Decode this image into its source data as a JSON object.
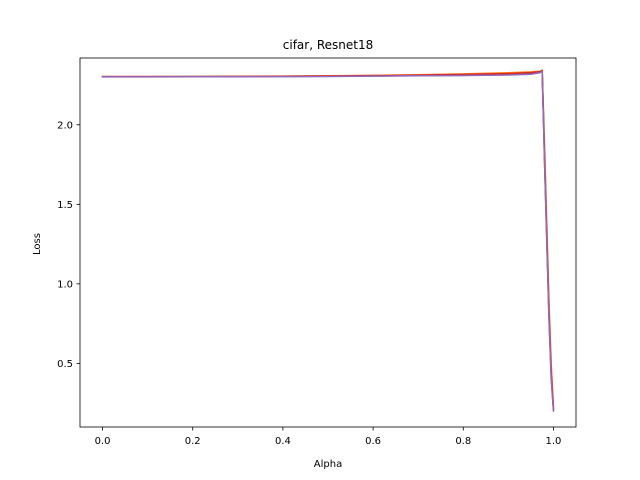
{
  "chart_data": {
    "type": "line",
    "title": "cifar, Resnet18",
    "xlabel": "Alpha",
    "ylabel": "Loss",
    "xlim": [
      -0.05,
      1.05
    ],
    "ylim": [
      0.1,
      2.42
    ],
    "xticks": [
      0.0,
      0.2,
      0.4,
      0.6,
      0.8,
      1.0
    ],
    "xtick_labels": [
      "0.0",
      "0.2",
      "0.4",
      "0.6",
      "0.8",
      "1.0"
    ],
    "yticks": [
      0.5,
      1.0,
      1.5,
      2.0
    ],
    "ytick_labels": [
      "0.5",
      "1.0",
      "1.5",
      "2.0"
    ],
    "grid": false,
    "series": [
      {
        "color": "#1f77b4",
        "x": [
          0.0,
          0.1,
          0.2,
          0.3,
          0.4,
          0.5,
          0.6,
          0.7,
          0.8,
          0.9,
          0.95,
          0.97,
          0.975,
          0.98,
          0.985,
          0.99,
          0.995,
          1.0
        ],
        "y": [
          2.303,
          2.303,
          2.303,
          2.304,
          2.305,
          2.306,
          2.308,
          2.31,
          2.313,
          2.318,
          2.325,
          2.333,
          2.34,
          1.85,
          1.35,
          0.85,
          0.45,
          0.22
        ]
      },
      {
        "color": "#ff7f0e",
        "x": [
          0.0,
          0.1,
          0.2,
          0.3,
          0.4,
          0.5,
          0.6,
          0.7,
          0.8,
          0.9,
          0.95,
          0.97,
          0.975,
          0.98,
          0.985,
          0.99,
          0.995,
          1.0
        ],
        "y": [
          2.303,
          2.303,
          2.304,
          2.305,
          2.306,
          2.308,
          2.311,
          2.315,
          2.32,
          2.327,
          2.333,
          2.337,
          2.343,
          1.9,
          1.4,
          0.9,
          0.5,
          0.23
        ]
      },
      {
        "color": "#2ca02c",
        "x": [
          0.0,
          0.1,
          0.2,
          0.3,
          0.4,
          0.5,
          0.6,
          0.7,
          0.8,
          0.9,
          0.95,
          0.97,
          0.975,
          0.98,
          0.985,
          0.99,
          0.995,
          1.0
        ],
        "y": [
          2.302,
          2.302,
          2.303,
          2.303,
          2.304,
          2.305,
          2.307,
          2.309,
          2.311,
          2.315,
          2.321,
          2.33,
          2.338,
          1.8,
          1.3,
          0.8,
          0.42,
          0.21
        ]
      },
      {
        "color": "#d62728",
        "x": [
          0.0,
          0.1,
          0.2,
          0.3,
          0.4,
          0.5,
          0.6,
          0.7,
          0.8,
          0.9,
          0.95,
          0.97,
          0.975,
          0.98,
          0.985,
          0.99,
          0.995,
          1.0
        ],
        "y": [
          2.303,
          2.303,
          2.303,
          2.304,
          2.305,
          2.307,
          2.309,
          2.312,
          2.316,
          2.322,
          2.328,
          2.334,
          2.341,
          1.82,
          1.32,
          0.82,
          0.44,
          0.21
        ]
      },
      {
        "color": "#9467bd",
        "x": [
          0.0,
          0.1,
          0.2,
          0.3,
          0.4,
          0.5,
          0.6,
          0.7,
          0.8,
          0.9,
          0.95,
          0.97,
          0.975,
          0.98,
          0.985,
          0.99,
          0.995,
          1.0
        ],
        "y": [
          2.301,
          2.301,
          2.302,
          2.302,
          2.303,
          2.304,
          2.306,
          2.308,
          2.31,
          2.313,
          2.318,
          2.327,
          2.336,
          1.78,
          1.28,
          0.78,
          0.4,
          0.2
        ]
      }
    ]
  }
}
